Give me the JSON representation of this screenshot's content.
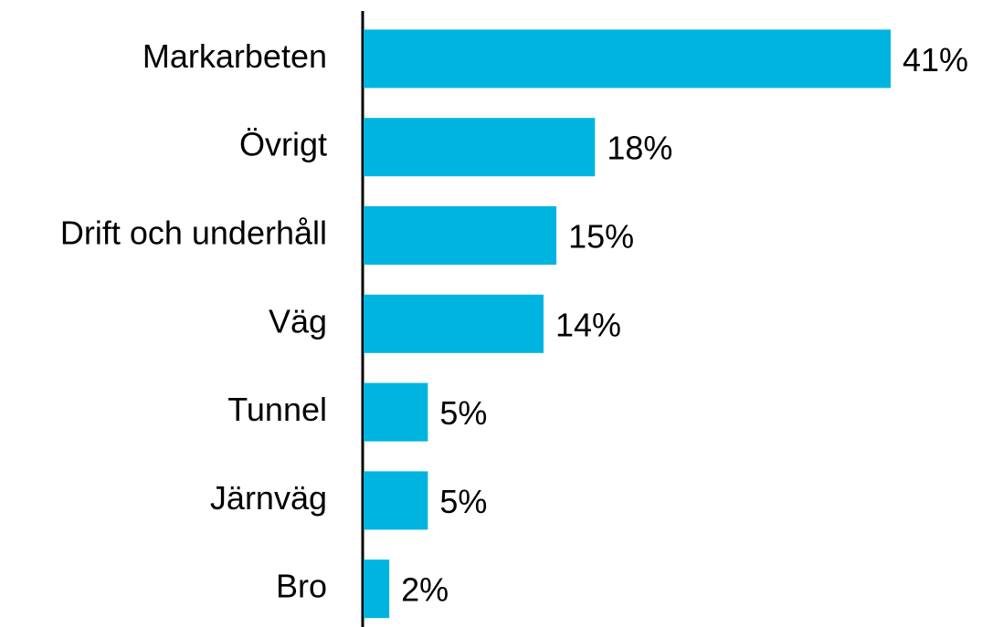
{
  "chart_data": {
    "type": "bar",
    "orientation": "horizontal",
    "categories": [
      "Markarbeten",
      "Övrigt",
      "Drift och underhåll",
      "Väg",
      "Tunnel",
      "Järnväg",
      "Bro"
    ],
    "values": [
      41,
      18,
      15,
      14,
      5,
      5,
      2
    ],
    "value_labels": [
      "41%",
      "18%",
      "15%",
      "14%",
      "5%",
      "5%",
      "2%"
    ],
    "color": "#00b4e0"
  }
}
